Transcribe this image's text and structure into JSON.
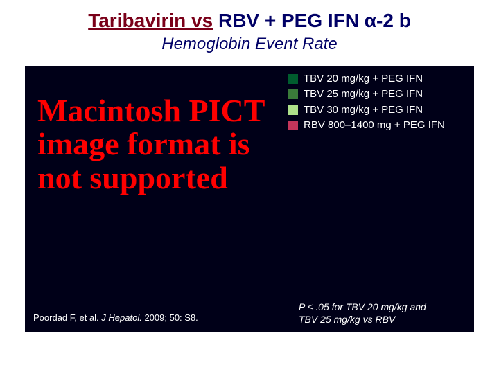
{
  "title_left": "Taribavirin vs",
  "title_right": " RBV + PEG IFN α-2 b",
  "subtitle": "Hemoglobin Event Rate",
  "pict_error": "Macintosh PICT image format is not supported",
  "legend": {
    "items": [
      {
        "color": "#005c2e",
        "label": "TBV 20 mg/kg + PEG IFN"
      },
      {
        "color": "#3a7a3a",
        "label": "TBV 25 mg/kg + PEG IFN"
      },
      {
        "color": "#aee08a",
        "label": "TBV 30 mg/kg + PEG IFN"
      },
      {
        "color": "#c4355b",
        "label": "RBV 800–1400 mg + PEG IFN"
      }
    ]
  },
  "citation": {
    "author": "Poordad F, et al. ",
    "journal": "J Hepatol.",
    "rest": " 2009; 50: S8."
  },
  "footnote_line1": "P ≤ .05 for TBV 20 mg/kg and",
  "footnote_line2": "TBV 25 mg/kg vs RBV"
}
